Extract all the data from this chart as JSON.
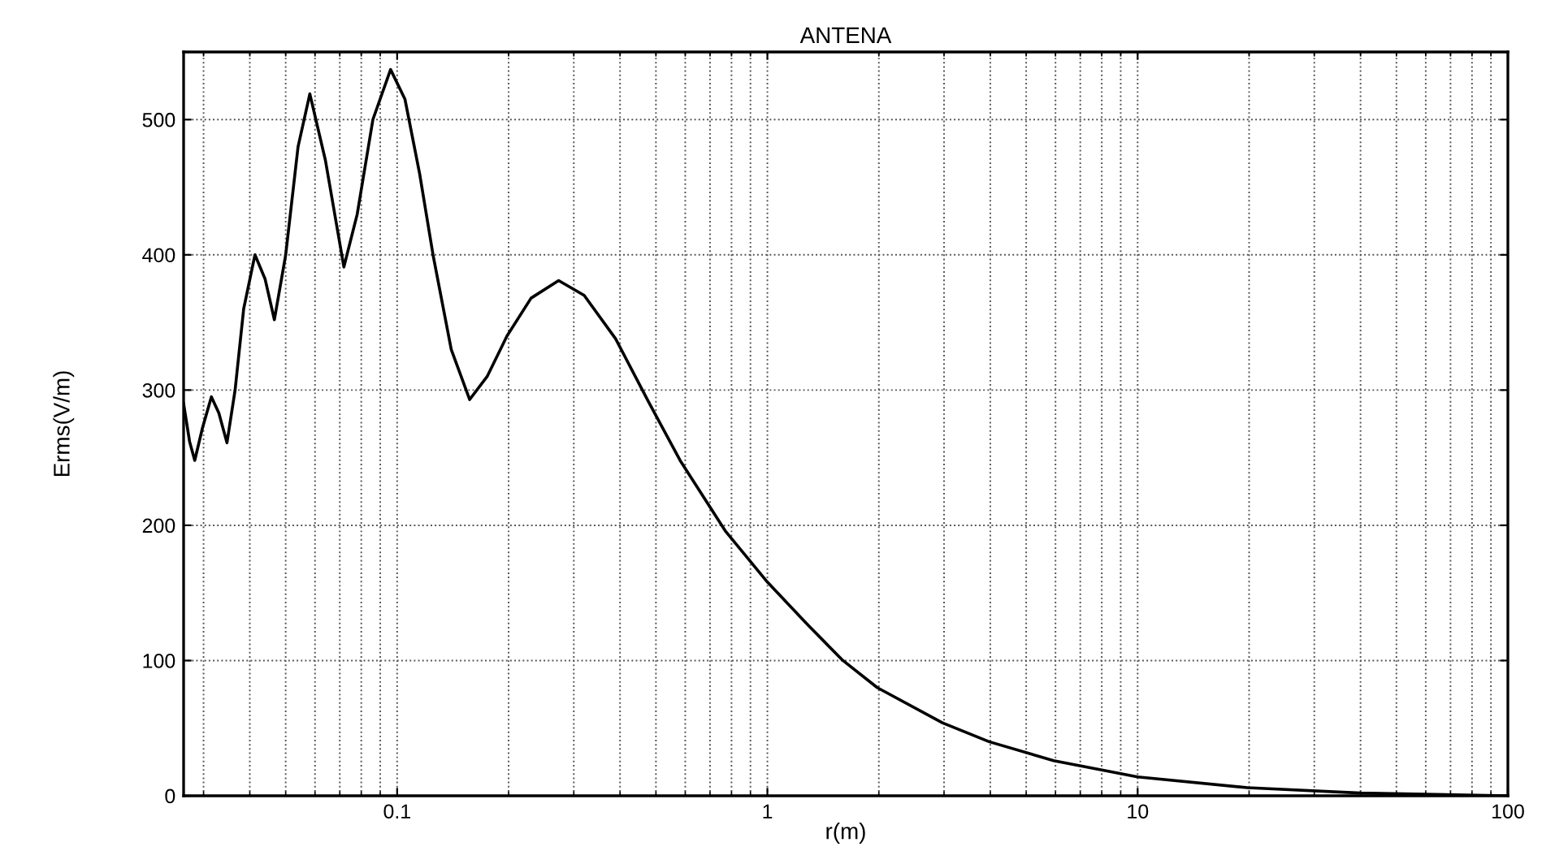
{
  "chart_data": {
    "type": "line",
    "title": "ANTENA",
    "xlabel": "r(m)",
    "ylabel": "Erms(V/m)",
    "log": "x",
    "grid": true,
    "legend": false,
    "marker": "none",
    "line_style": "solid",
    "xlim": [
      0.0265,
      100
    ],
    "xticks": [
      {
        "value": 0.1,
        "label": "0.1"
      },
      1,
      10,
      100
    ],
    "ylim": [
      0,
      550
    ],
    "yticks": [
      0,
      100,
      200,
      300,
      400,
      500
    ],
    "series": [
      {
        "color": "#000000",
        "x": [
          0.0265,
          0.0275,
          0.0284,
          0.0298,
          0.0315,
          0.033,
          0.0347,
          0.0365,
          0.0385,
          0.0413,
          0.044,
          0.0466,
          0.05,
          0.054,
          0.0581,
          0.064,
          0.0718,
          0.078,
          0.086,
          0.096,
          0.105,
          0.115,
          0.125,
          0.14,
          0.157,
          0.175,
          0.198,
          0.23,
          0.273,
          0.32,
          0.389,
          0.476,
          0.581,
          0.769,
          1,
          1.3,
          1.6,
          1.98,
          2.97,
          3.97,
          5.93,
          10,
          19.8,
          40,
          100
        ],
        "values": [
          290,
          262,
          248,
          272,
          295,
          283,
          261,
          300,
          360,
          400,
          382,
          352,
          400,
          480,
          519,
          470,
          391,
          430,
          500,
          537,
          515,
          460,
          400,
          330,
          293,
          310,
          340,
          368,
          381,
          370,
          338,
          292,
          248,
          196,
          158,
          125,
          100,
          80,
          54,
          40,
          26,
          14,
          6,
          2,
          0
        ]
      }
    ]
  }
}
